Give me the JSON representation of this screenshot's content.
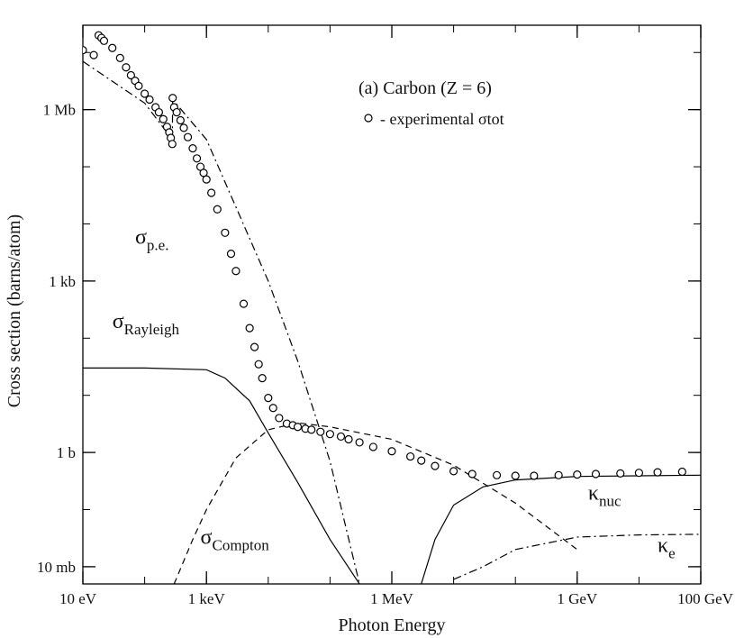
{
  "chart_data": {
    "type": "line",
    "title": "(a) Carbon (Z = 6)",
    "legend_text": "- experimental σtot",
    "legend_placement": "top-right",
    "xlabel": "Photon Energy",
    "ylabel": "Cross section (barns/atom)",
    "x_scale": "log",
    "y_scale": "log",
    "x_unit": "eV",
    "y_unit": "barns/atom",
    "xlim": [
      10,
      100000000000
    ],
    "ylim": [
      0.005,
      30000000
    ],
    "grid": false,
    "x_ticks": [
      {
        "value": 10,
        "label": "10 eV"
      },
      {
        "value": 1000,
        "label": "1 keV"
      },
      {
        "value": 1000000,
        "label": "1 MeV"
      },
      {
        "value": 1000000000,
        "label": "1 GeV"
      },
      {
        "value": 100000000000,
        "label": "100 GeV"
      }
    ],
    "y_ticks": [
      {
        "value": 0.01,
        "label": "10 mb"
      },
      {
        "value": 1,
        "label": "1 b"
      },
      {
        "value": 1000,
        "label": "1 kb"
      },
      {
        "value": 1000000,
        "label": "1 Mb"
      }
    ],
    "series": [
      {
        "name": "σRayleigh",
        "style": "solid",
        "x": [
          10,
          100,
          1000,
          2000,
          5000,
          10000,
          30000,
          100000,
          300000,
          1000000
        ],
        "y": [
          30,
          30,
          28,
          20,
          8,
          2.2,
          0.3,
          0.03,
          0.005,
          0.0002
        ]
      },
      {
        "name": "σCompton",
        "style": "dashed",
        "x": [
          300,
          600,
          1000,
          3000,
          10000,
          30000,
          100000,
          1000000,
          10000000,
          100000000,
          1000000000
        ],
        "y": [
          0.005,
          0.03,
          0.1,
          0.8,
          2.5,
          3.3,
          2.8,
          1.7,
          0.6,
          0.13,
          0.02
        ]
      },
      {
        "name": "σp.e.",
        "style": "dash-dot",
        "x": [
          10,
          100,
          280,
          284,
          1000,
          10000,
          30000,
          100000,
          300000
        ],
        "y": [
          7000000,
          1300000,
          300000,
          1500000,
          300000,
          1000,
          40,
          0.7,
          0.005
        ]
      },
      {
        "name": "κnuc",
        "style": "solid",
        "x": [
          3000000,
          5000000,
          10000000,
          30000000,
          100000000,
          1000000000,
          10000000000,
          100000000000
        ],
        "y": [
          0.005,
          0.03,
          0.12,
          0.25,
          0.33,
          0.38,
          0.39,
          0.4
        ]
      },
      {
        "name": "κe",
        "style": "dash-dot",
        "x": [
          10000000,
          30000000,
          100000000,
          1000000000,
          10000000000,
          100000000000
        ],
        "y": [
          0.006,
          0.01,
          0.02,
          0.033,
          0.036,
          0.037
        ]
      },
      {
        "name": "experimental σtot",
        "style": "circles",
        "x": [
          10,
          15,
          18,
          20,
          22,
          30,
          40,
          50,
          60,
          70,
          80,
          100,
          120,
          150,
          170,
          200,
          230,
          250,
          265,
          280,
          284,
          300,
          330,
          380,
          430,
          500,
          600,
          700,
          800,
          900,
          1000,
          1200,
          1500,
          2000,
          2500,
          3000,
          4000,
          5000,
          6000,
          7000,
          8000,
          10000,
          12000,
          15000,
          20000,
          25000,
          30000,
          40000,
          50000,
          70000,
          100000,
          150000,
          200000,
          300000,
          500000,
          1000000,
          2000000,
          3000000,
          5000000,
          10000000,
          20000000,
          50000000,
          100000000,
          200000000,
          500000000,
          1000000000,
          2000000000,
          5000000000,
          10000000000,
          20000000000,
          50000000000
        ],
        "y": [
          11000000,
          9000000,
          20000000,
          18000000,
          16000000,
          12000000,
          8000000,
          5500000,
          4000000,
          3200000,
          2600000,
          1900000,
          1500000,
          1100000,
          900000,
          680000,
          500000,
          400000,
          320000,
          250000,
          1600000,
          1100000,
          900000,
          650000,
          480000,
          330000,
          210000,
          140000,
          100000,
          78000,
          60000,
          35000,
          18000,
          7000,
          3000,
          1500,
          400,
          150,
          70,
          35,
          20,
          9,
          6,
          4,
          3.2,
          3.0,
          2.8,
          2.6,
          2.5,
          2.3,
          2.1,
          1.9,
          1.7,
          1.5,
          1.25,
          1.05,
          0.85,
          0.72,
          0.58,
          0.47,
          0.42,
          0.4,
          0.39,
          0.39,
          0.4,
          0.41,
          0.42,
          0.43,
          0.44,
          0.45,
          0.46
        ]
      }
    ],
    "annotations": [
      {
        "base": "σ",
        "sub": "p.e.",
        "x": 70,
        "y": 4500
      },
      {
        "base": "σ",
        "sub": "Rayleigh",
        "x": 30,
        "y": 150
      },
      {
        "base": "σ",
        "sub": "Compton",
        "x": 800,
        "y": 0.025
      },
      {
        "base": "κ",
        "sub": "nuc",
        "x": 1500000000,
        "y": 0.15
      },
      {
        "base": "κ",
        "sub": "e",
        "x": 20000000000,
        "y": 0.018
      }
    ]
  }
}
